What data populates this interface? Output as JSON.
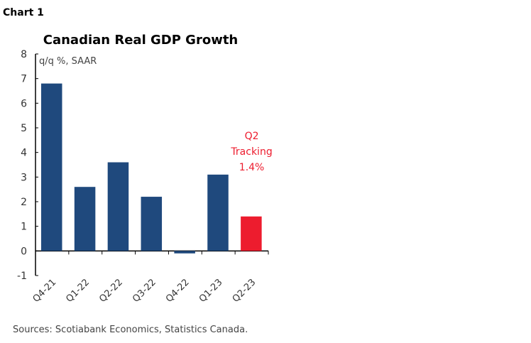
{
  "chart_label": "Chart 1",
  "source": "Sources: Scotiabank Economics, Statistics Canada.",
  "chart_data": {
    "type": "bar",
    "title": "Canadian Real GDP Growth",
    "unit_label": "q/q %, SAAR",
    "categories": [
      "Q4-21",
      "Q1-22",
      "Q2-22",
      "Q3-22",
      "Q4-22",
      "Q1-23",
      "Q2-23"
    ],
    "values": [
      6.8,
      2.6,
      3.6,
      2.2,
      -0.1,
      3.1,
      1.4
    ],
    "ylim": [
      -1,
      8
    ],
    "yticks": [
      -1,
      0,
      1,
      2,
      3,
      4,
      5,
      6,
      7,
      8
    ],
    "grid": false,
    "colors": {
      "actual": "#1f497d",
      "tracking": "#ed1c2e"
    },
    "highlight_index": 6,
    "annotation": [
      "Q2",
      "Tracking",
      "1.4%"
    ]
  }
}
